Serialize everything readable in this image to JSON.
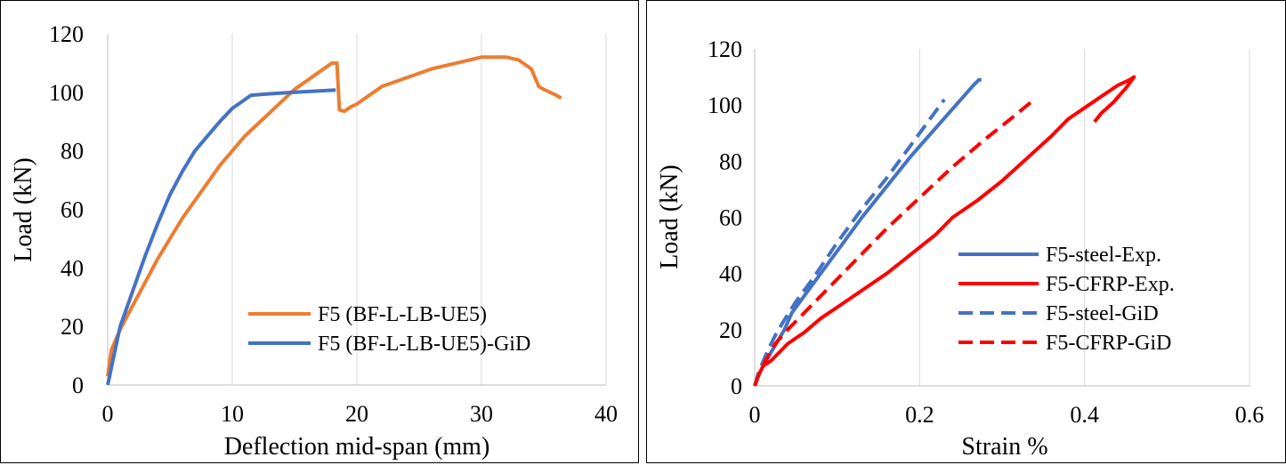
{
  "chart_data": [
    {
      "type": "line",
      "title": "",
      "xlabel": "Deflection mid-span (mm)",
      "ylabel": "Load (kN)",
      "xlim": [
        0,
        40
      ],
      "ylim": [
        0,
        120
      ],
      "xticks": [
        0,
        10,
        20,
        30,
        40
      ],
      "yticks": [
        0,
        20,
        40,
        60,
        80,
        100,
        120
      ],
      "xtick_labels": [
        "0",
        "10",
        "20",
        "30",
        "40"
      ],
      "ytick_labels": [
        "0",
        "20",
        "40",
        "60",
        "80",
        "100",
        "120"
      ],
      "grid": "vertical",
      "legend_position": "bottom-right",
      "series": [
        {
          "name": "F5 (BF-L-LB-UE5)",
          "color": "#ed7d31",
          "dash": "solid",
          "x": [
            0,
            0.3,
            1,
            2,
            3,
            4,
            5,
            6,
            7,
            8,
            9,
            10,
            11,
            12,
            13,
            14,
            15,
            16,
            17,
            18,
            18.4,
            18.6,
            19,
            19.5,
            20,
            21,
            22,
            24,
            26,
            28,
            29,
            30,
            31,
            32,
            33,
            34,
            34.6,
            35,
            35.5,
            36,
            36.4
          ],
          "y": [
            3,
            12,
            19,
            27,
            35,
            43,
            50,
            57,
            63,
            69,
            75,
            80,
            85,
            89,
            93,
            97,
            101,
            104,
            107,
            110,
            110,
            94,
            93.5,
            95,
            96,
            99,
            102,
            105,
            108,
            110,
            111,
            112,
            112,
            112,
            111,
            108,
            102,
            101,
            100,
            99,
            98
          ]
        },
        {
          "name": "F5 (BF-L-LB-UE5)-GiD",
          "color": "#4472c4",
          "dash": "solid",
          "x": [
            0,
            0.5,
            1,
            2,
            3,
            4,
            5,
            6,
            7,
            8,
            9,
            10,
            11,
            11.5,
            13,
            15,
            17,
            18.3
          ],
          "y": [
            0,
            10,
            20,
            32,
            44,
            55,
            65,
            73,
            80,
            85,
            90,
            94.5,
            97.5,
            99,
            99.5,
            100,
            100.5,
            100.8
          ]
        }
      ]
    },
    {
      "type": "line",
      "title": "",
      "xlabel": "Strain %",
      "ylabel": "Load (kN)",
      "xlim": [
        0,
        0.6
      ],
      "ylim": [
        0,
        120
      ],
      "xticks": [
        0,
        0.2,
        0.4,
        0.6
      ],
      "yticks": [
        0,
        20,
        40,
        60,
        80,
        100,
        120
      ],
      "xtick_labels": [
        "0",
        "0.2",
        "0.4",
        "0.6"
      ],
      "ytick_labels": [
        "0",
        "20",
        "40",
        "60",
        "80",
        "100",
        "120"
      ],
      "grid": "vertical",
      "legend_position": "bottom-right",
      "series": [
        {
          "name": "F5-steel-Exp.",
          "color": "#4472c4",
          "dash": "solid",
          "x": [
            0,
            0.005,
            0.012,
            0.02,
            0.028,
            0.036,
            0.045,
            0.06,
            0.08,
            0.1,
            0.13,
            0.16,
            0.19,
            0.22,
            0.25,
            0.265,
            0.272,
            0.275
          ],
          "y": [
            0,
            4,
            8,
            12,
            16,
            20,
            26,
            32,
            40,
            48,
            60,
            71,
            82,
            92,
            102,
            107,
            109,
            109
          ]
        },
        {
          "name": "F5-CFRP-Exp.",
          "color": "#ff0000",
          "dash": "solid",
          "x": [
            0,
            0.005,
            0.01,
            0.02,
            0.03,
            0.04,
            0.06,
            0.08,
            0.1,
            0.13,
            0.16,
            0.19,
            0.22,
            0.24,
            0.27,
            0.3,
            0.33,
            0.36,
            0.38,
            0.4,
            0.42,
            0.44,
            0.455,
            0.46,
            0.45,
            0.435,
            0.42,
            0.412
          ],
          "y": [
            0,
            4,
            7,
            9,
            12,
            15,
            19,
            24,
            28,
            34,
            40,
            47,
            54,
            60,
            66,
            73,
            81,
            89,
            95,
            99,
            103,
            107,
            109,
            110,
            106,
            101,
            97,
            94
          ]
        },
        {
          "name": "F5-steel-GiD",
          "color": "#4472c4",
          "dash": "dashed",
          "x": [
            0,
            0.005,
            0.015,
            0.025,
            0.035,
            0.05,
            0.07,
            0.1,
            0.13,
            0.16,
            0.19,
            0.21,
            0.23
          ],
          "y": [
            0,
            5,
            12,
            18,
            23,
            30,
            38,
            51,
            63,
            74,
            86,
            94,
            102
          ]
        },
        {
          "name": "F5-CFRP-GiD",
          "color": "#ff0000",
          "dash": "dashed",
          "x": [
            0,
            0.005,
            0.015,
            0.025,
            0.04,
            0.06,
            0.09,
            0.12,
            0.16,
            0.2,
            0.24,
            0.28,
            0.31,
            0.335
          ],
          "y": [
            0,
            4,
            10,
            15,
            20,
            26,
            35,
            44,
            56,
            67,
            78,
            88,
            95,
            101
          ]
        }
      ]
    }
  ]
}
